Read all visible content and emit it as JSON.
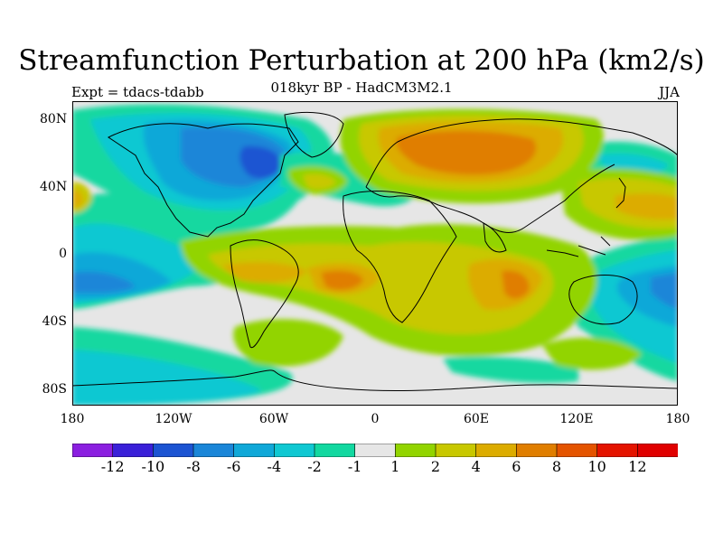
{
  "title": "Streamfunction Perturbation at 200 hPa (km2/s)",
  "subtitle": "018kyr BP - HadCM3M2.1",
  "experiment": "Expt = tdacs-tdabb",
  "season": "JJA",
  "map": {
    "projection": "cylindrical equidistant",
    "lon_range": [
      -180,
      180
    ],
    "lat_range": [
      -90,
      90
    ],
    "y_tick_labels": [
      "80N",
      "40N",
      "0",
      "40S",
      "80S"
    ],
    "x_tick_labels": [
      "180",
      "120W",
      "60W",
      "0",
      "60E",
      "120E",
      "180"
    ]
  },
  "colorbar": {
    "labels": [
      "-12",
      "-10",
      "-8",
      "-6",
      "-4",
      "-2",
      "-1",
      "1",
      "2",
      "4",
      "6",
      "8",
      "10",
      "12"
    ],
    "colors": [
      "#8b1fe0",
      "#3a20d8",
      "#1c54d2",
      "#1a86d8",
      "#10a8d8",
      "#10c8d2",
      "#12d8a0",
      "#e6e6e6",
      "#92d400",
      "#c8c800",
      "#dcac00",
      "#e07e00",
      "#e45400",
      "#e41400",
      "#e00000"
    ]
  }
}
